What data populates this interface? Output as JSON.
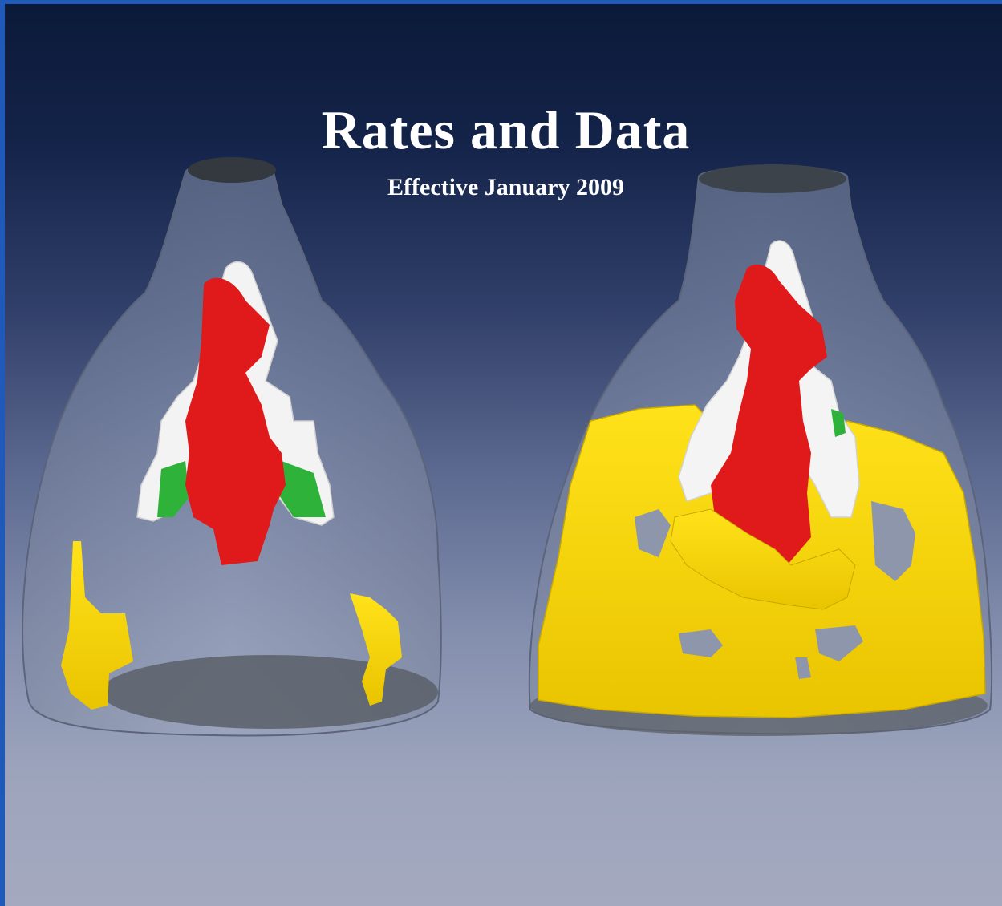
{
  "cover": {
    "title": "Rates and Data",
    "subtitle": "Effective January 2009"
  },
  "image": {
    "left_model": "segmented-3d-model-partial",
    "right_model": "segmented-3d-model-full",
    "colors": {
      "background_top": "#0b1a38",
      "background_bottom": "#a4a9bf",
      "border": "#1f5ab8",
      "shell": "#8d97ad",
      "red": "#e01a1a",
      "white": "#f4f4f4",
      "green": "#2fb23a",
      "yellow": "#f2d000"
    }
  }
}
